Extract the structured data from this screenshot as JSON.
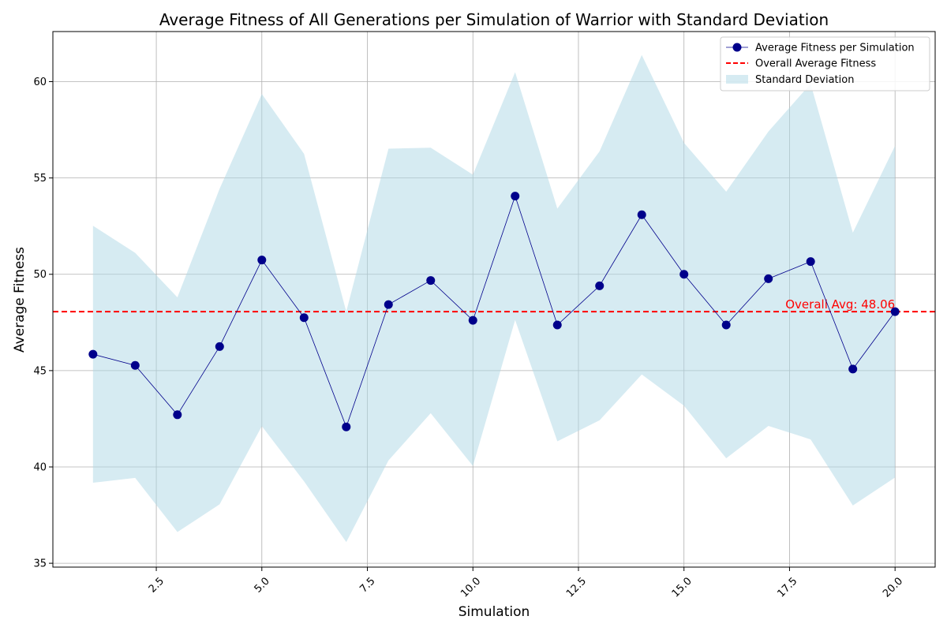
{
  "chart_data": {
    "type": "line",
    "title": "Average Fitness of All Generations per Simulation of Warrior with Standard Deviation",
    "xlabel": "Simulation",
    "ylabel": "Average Fitness",
    "xlim": [
      0.05,
      20.95
    ],
    "ylim": [
      34.8,
      62.6
    ],
    "xticks": [
      2.5,
      5.0,
      7.5,
      10.0,
      12.5,
      15.0,
      17.5,
      20.0
    ],
    "xtick_labels": [
      "2.5",
      "5.0",
      "7.5",
      "10.0",
      "12.5",
      "15.0",
      "17.5",
      "20.0"
    ],
    "yticks": [
      35,
      40,
      45,
      50,
      55,
      60
    ],
    "ytick_labels": [
      "35",
      "40",
      "45",
      "50",
      "55",
      "60"
    ],
    "grid": true,
    "legend_position": "top-right",
    "x": [
      1,
      2,
      3,
      4,
      5,
      6,
      7,
      8,
      9,
      10,
      11,
      12,
      13,
      14,
      15,
      16,
      17,
      18,
      19,
      20
    ],
    "series": [
      {
        "name": "Average Fitness per Simulation",
        "color": "#00008b",
        "values": [
          45.85,
          45.27,
          42.71,
          46.25,
          50.74,
          47.75,
          42.08,
          48.43,
          49.68,
          47.61,
          54.06,
          47.37,
          49.4,
          53.09,
          50.0,
          47.37,
          49.77,
          50.66,
          45.08,
          48.06
        ]
      }
    ],
    "std_band": {
      "name": "Standard Deviation",
      "color": "#add8e6",
      "lower": [
        39.18,
        39.43,
        36.62,
        38.06,
        42.12,
        39.25,
        36.1,
        40.34,
        42.79,
        40.05,
        47.63,
        41.33,
        42.42,
        44.8,
        43.18,
        40.45,
        42.13,
        41.43,
        38.0,
        39.45
      ],
      "upper": [
        52.52,
        51.11,
        48.8,
        54.44,
        59.36,
        56.25,
        48.06,
        56.52,
        56.57,
        55.17,
        60.49,
        53.41,
        56.38,
        61.38,
        56.82,
        54.29,
        57.41,
        59.89,
        52.16,
        56.67
      ]
    },
    "overall_average": {
      "name": "Overall Average Fitness",
      "value": 48.06,
      "color": "#ff0000",
      "annotation": "Overall Avg: 48.06"
    }
  }
}
